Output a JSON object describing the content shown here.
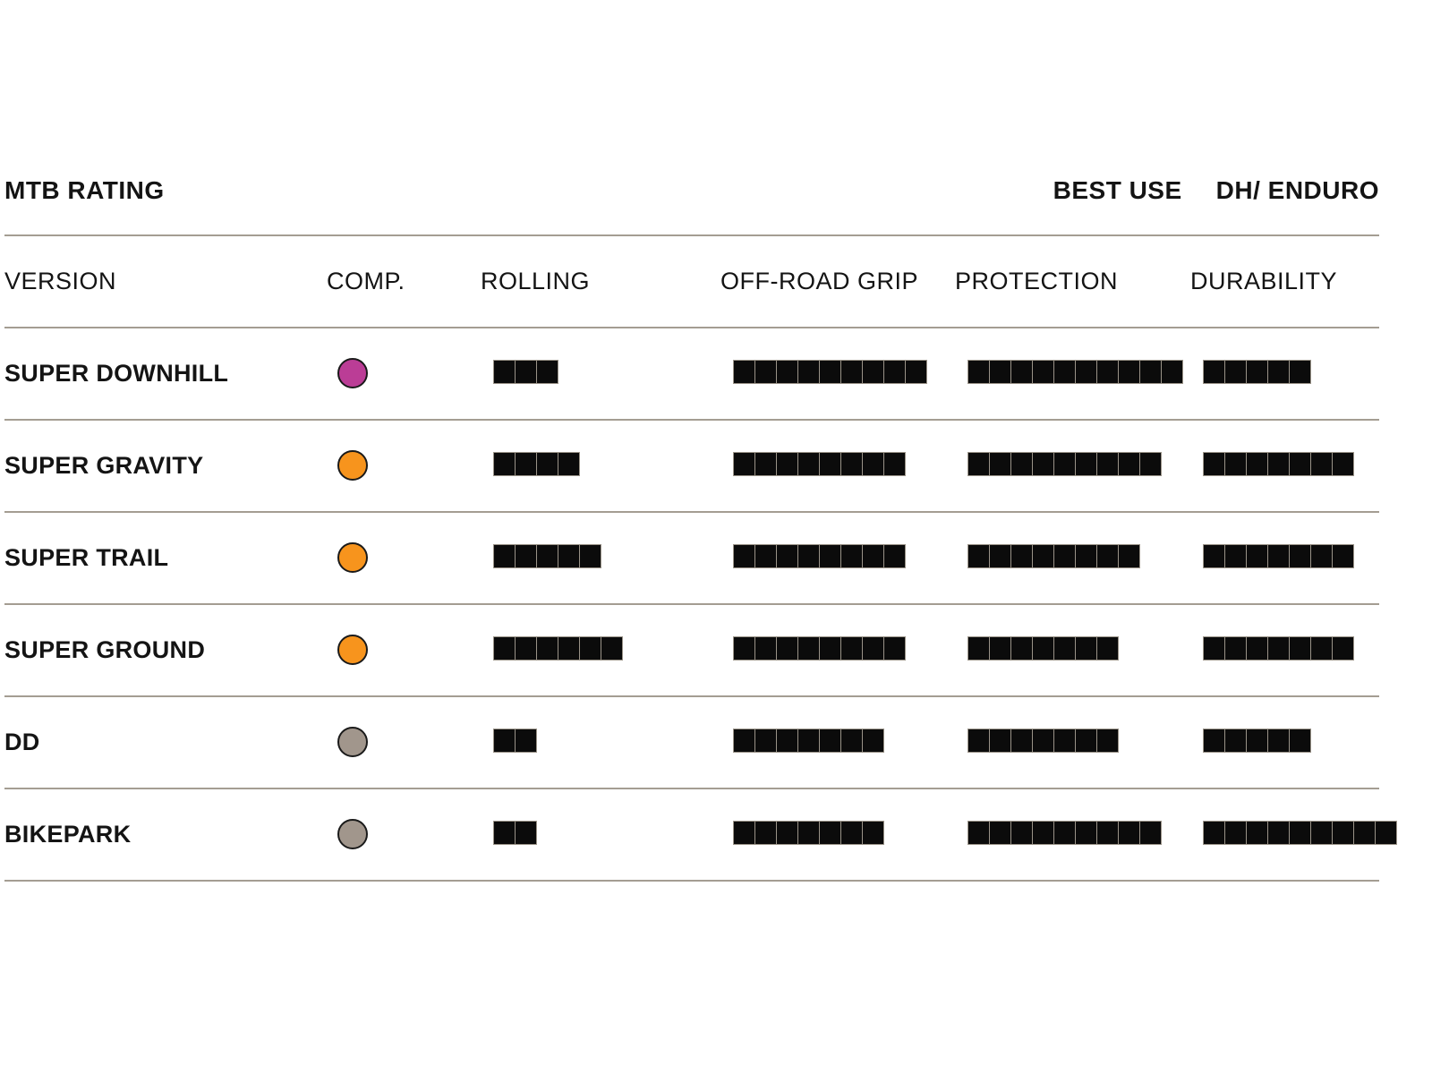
{
  "header": {
    "title": "MTB RATING",
    "best_use_label": "BEST USE",
    "best_use_value": "DH/ ENDURO"
  },
  "chart_data": {
    "type": "table",
    "title": "MTB RATING",
    "max_rating": 10,
    "columns": [
      "VERSION",
      "COMP.",
      "ROLLING",
      "OFF-ROAD GRIP",
      "PROTECTION",
      "DURABILITY"
    ],
    "rows": [
      {
        "label": "SUPER DOWNHILL",
        "comp_color": "#bb3d96",
        "rolling": 3,
        "off_road_grip": 9,
        "protection": 10,
        "durability": 5
      },
      {
        "label": "SUPER GRAVITY",
        "comp_color": "#f7941d",
        "rolling": 4,
        "off_road_grip": 8,
        "protection": 9,
        "durability": 7
      },
      {
        "label": "SUPER TRAIL",
        "comp_color": "#f7941d",
        "rolling": 5,
        "off_road_grip": 8,
        "protection": 8,
        "durability": 7
      },
      {
        "label": "SUPER GROUND",
        "comp_color": "#f7941d",
        "rolling": 6,
        "off_road_grip": 8,
        "protection": 7,
        "durability": 7
      },
      {
        "label": "DD",
        "comp_color": "#a1968c",
        "rolling": 2,
        "off_road_grip": 7,
        "protection": 7,
        "durability": 5
      },
      {
        "label": "BIKEPARK",
        "comp_color": "#a1968c",
        "rolling": 2,
        "off_road_grip": 7,
        "protection": 9,
        "durability": 9
      }
    ]
  },
  "colors": {
    "divider": "#a49d92",
    "segment_fill": "#0b0b0b",
    "segment_outline": "#9a9388",
    "text": "#141414",
    "compound_magenta": "#bb3d96",
    "compound_orange": "#f7941d",
    "compound_gray": "#a1968c"
  }
}
